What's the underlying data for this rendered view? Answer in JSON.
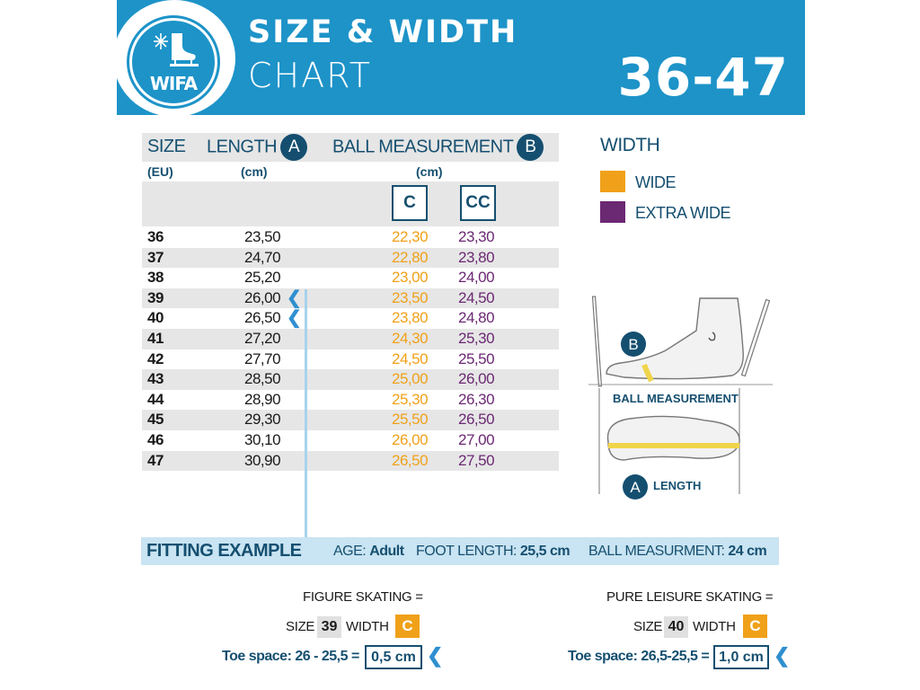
{
  "header": {
    "logo_text": "WIFA",
    "logo_icons": [
      "snowflake-icon",
      "skate-icon"
    ],
    "title_line1": "SIZE & WIDTH",
    "title_line2": "CHART",
    "size_range": "36-47"
  },
  "table": {
    "col_size": "SIZE",
    "col_size_unit": "(EU)",
    "col_length": "LENGTH",
    "col_length_marker": "A",
    "col_length_unit": "(cm)",
    "col_ball": "BALL MEASUREMENT",
    "col_ball_marker": "B",
    "col_ball_unit": "(cm)",
    "width_c": "C",
    "width_cc": "CC",
    "rows": [
      {
        "size": "36",
        "length": "23,50",
        "c": "22,30",
        "cc": "23,30"
      },
      {
        "size": "37",
        "length": "24,70",
        "c": "22,80",
        "cc": "23,80"
      },
      {
        "size": "38",
        "length": "25,20",
        "c": "23,00",
        "cc": "24,00"
      },
      {
        "size": "39",
        "length": "26,00",
        "c": "23,50",
        "cc": "24,50"
      },
      {
        "size": "40",
        "length": "26,50",
        "c": "23,80",
        "cc": "24,80"
      },
      {
        "size": "41",
        "length": "27,20",
        "c": "24,30",
        "cc": "25,30"
      },
      {
        "size": "42",
        "length": "27,70",
        "c": "24,50",
        "cc": "25,50"
      },
      {
        "size": "43",
        "length": "28,50",
        "c": "25,00",
        "cc": "26,00"
      },
      {
        "size": "44",
        "length": "28,90",
        "c": "25,30",
        "cc": "26,30"
      },
      {
        "size": "45",
        "length": "29,30",
        "c": "25,50",
        "cc": "26,50"
      },
      {
        "size": "46",
        "length": "30,10",
        "c": "26,00",
        "cc": "27,00"
      },
      {
        "size": "47",
        "length": "30,90",
        "c": "26,50",
        "cc": "27,50"
      }
    ]
  },
  "width_legend": {
    "title": "WIDTH",
    "items": [
      {
        "label": "WIDE",
        "color": "#f0a119"
      },
      {
        "label": "EXTRA WIDE",
        "color": "#6b2873"
      }
    ]
  },
  "diagram": {
    "ball_marker": "B",
    "ball_label": "BALL MEASUREMENT",
    "length_marker": "A",
    "length_label": "LENGTH"
  },
  "fitting": {
    "title": "FITTING EXAMPLE",
    "age_label": "AGE:",
    "age_value": "Adult",
    "foot_label": "FOOT LENGTH:",
    "foot_value": "25,5 cm",
    "ball_label": "BALL MEASURMENT:",
    "ball_value": "24 cm"
  },
  "examples": [
    {
      "heading": "FIGURE SKATING =",
      "size_label": "SIZE",
      "size_value": "39",
      "width_label": "WIDTH",
      "width_value": "C",
      "toe_label": "Toe space: 26 - 25,5 =",
      "toe_value": "0,5 cm"
    },
    {
      "heading": "PURE LEISURE SKATING =",
      "size_label": "SIZE",
      "size_value": "40",
      "width_label": "WIDTH",
      "width_value": "C",
      "toe_label": "Toe space: 26,5-25,5 =",
      "toe_value": "1,0 cm"
    }
  ],
  "colors": {
    "brand_blue": "#1d93c8",
    "dark_blue": "#154f70",
    "wide": "#f0a119",
    "extra_wide": "#6b2873"
  }
}
